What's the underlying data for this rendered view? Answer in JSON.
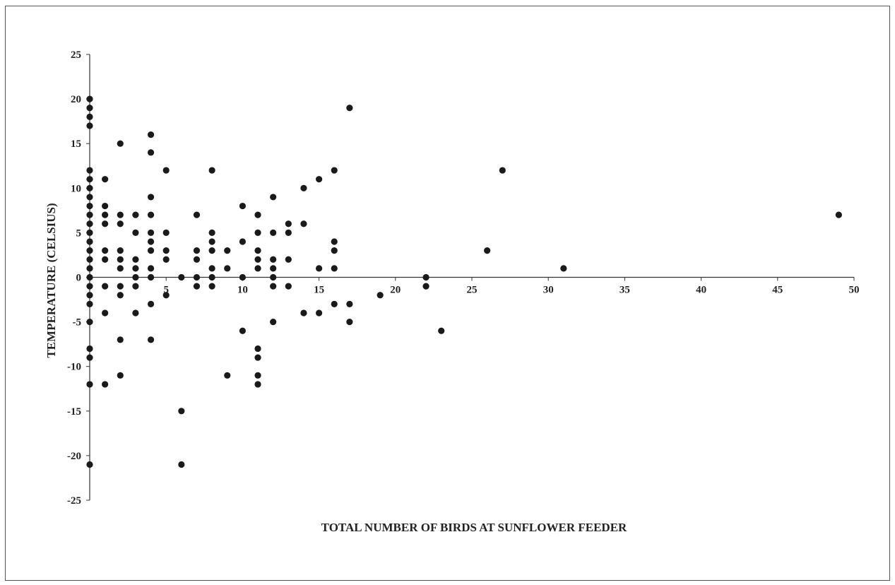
{
  "chart_data": {
    "type": "scatter",
    "title": "",
    "xlabel": "TOTAL NUMBER OF BIRDS AT SUNFLOWER FEEDER",
    "ylabel": "TEMPERATURE (CELSIUS)",
    "xlim": [
      0,
      50
    ],
    "ylim": [
      -25,
      25
    ],
    "x_ticks": [
      5,
      10,
      15,
      20,
      25,
      30,
      35,
      40,
      45,
      50
    ],
    "y_ticks": [
      25,
      20,
      15,
      10,
      5,
      0,
      -5,
      -10,
      -15,
      -20,
      -25
    ],
    "grid": false,
    "legend": "none",
    "marker_color": "#1a1a1a",
    "series": [
      {
        "points": [
          [
            0,
            20
          ],
          [
            0,
            19
          ],
          [
            0,
            18
          ],
          [
            0,
            17
          ],
          [
            0,
            12
          ],
          [
            0,
            11
          ],
          [
            0,
            10
          ],
          [
            0,
            9
          ],
          [
            0,
            8
          ],
          [
            0,
            7
          ],
          [
            0,
            6
          ],
          [
            0,
            5
          ],
          [
            0,
            4
          ],
          [
            0,
            3
          ],
          [
            0,
            2
          ],
          [
            0,
            1
          ],
          [
            0,
            0
          ],
          [
            0,
            -1
          ],
          [
            0,
            -2
          ],
          [
            0,
            -3
          ],
          [
            0,
            -5
          ],
          [
            0,
            -8
          ],
          [
            0,
            -9
          ],
          [
            0,
            -12
          ],
          [
            0,
            -21
          ],
          [
            1,
            11
          ],
          [
            1,
            8
          ],
          [
            1,
            7
          ],
          [
            1,
            6
          ],
          [
            1,
            3
          ],
          [
            1,
            2
          ],
          [
            1,
            -1
          ],
          [
            1,
            -4
          ],
          [
            1,
            -12
          ],
          [
            2,
            15
          ],
          [
            2,
            7
          ],
          [
            2,
            6
          ],
          [
            2,
            3
          ],
          [
            2,
            2
          ],
          [
            2,
            1
          ],
          [
            2,
            -1
          ],
          [
            2,
            -2
          ],
          [
            2,
            -7
          ],
          [
            2,
            -11
          ],
          [
            3,
            7
          ],
          [
            3,
            5
          ],
          [
            3,
            2
          ],
          [
            3,
            1
          ],
          [
            3,
            0
          ],
          [
            3,
            -1
          ],
          [
            3,
            -4
          ],
          [
            4,
            16
          ],
          [
            4,
            14
          ],
          [
            4,
            9
          ],
          [
            4,
            7
          ],
          [
            4,
            5
          ],
          [
            4,
            4
          ],
          [
            4,
            3
          ],
          [
            4,
            1
          ],
          [
            4,
            0
          ],
          [
            4,
            -3
          ],
          [
            4,
            -7
          ],
          [
            5,
            12
          ],
          [
            5,
            5
          ],
          [
            5,
            3
          ],
          [
            5,
            2
          ],
          [
            5,
            -2
          ],
          [
            6,
            0
          ],
          [
            6,
            -15
          ],
          [
            6,
            -21
          ],
          [
            7,
            7
          ],
          [
            7,
            3
          ],
          [
            7,
            2
          ],
          [
            7,
            0
          ],
          [
            7,
            -1
          ],
          [
            8,
            12
          ],
          [
            8,
            5
          ],
          [
            8,
            4
          ],
          [
            8,
            3
          ],
          [
            8,
            1
          ],
          [
            8,
            0
          ],
          [
            8,
            -1
          ],
          [
            9,
            3
          ],
          [
            9,
            1
          ],
          [
            9,
            -11
          ],
          [
            10,
            8
          ],
          [
            10,
            4
          ],
          [
            10,
            0
          ],
          [
            10,
            -6
          ],
          [
            11,
            7
          ],
          [
            11,
            5
          ],
          [
            11,
            3
          ],
          [
            11,
            2
          ],
          [
            11,
            1
          ],
          [
            11,
            -8
          ],
          [
            11,
            -9
          ],
          [
            11,
            -11
          ],
          [
            11,
            -12
          ],
          [
            12,
            9
          ],
          [
            12,
            5
          ],
          [
            12,
            2
          ],
          [
            12,
            1
          ],
          [
            12,
            0
          ],
          [
            12,
            -1
          ],
          [
            12,
            -5
          ],
          [
            13,
            6
          ],
          [
            13,
            5
          ],
          [
            13,
            2
          ],
          [
            13,
            -1
          ],
          [
            14,
            10
          ],
          [
            14,
            6
          ],
          [
            14,
            -4
          ],
          [
            15,
            11
          ],
          [
            15,
            1
          ],
          [
            15,
            -4
          ],
          [
            16,
            12
          ],
          [
            16,
            4
          ],
          [
            16,
            3
          ],
          [
            16,
            1
          ],
          [
            16,
            -3
          ],
          [
            17,
            19
          ],
          [
            17,
            -3
          ],
          [
            17,
            -5
          ],
          [
            19,
            -2
          ],
          [
            22,
            0
          ],
          [
            22,
            -1
          ],
          [
            23,
            -6
          ],
          [
            26,
            3
          ],
          [
            27,
            12
          ],
          [
            31,
            1
          ],
          [
            49,
            7
          ]
        ]
      }
    ]
  }
}
